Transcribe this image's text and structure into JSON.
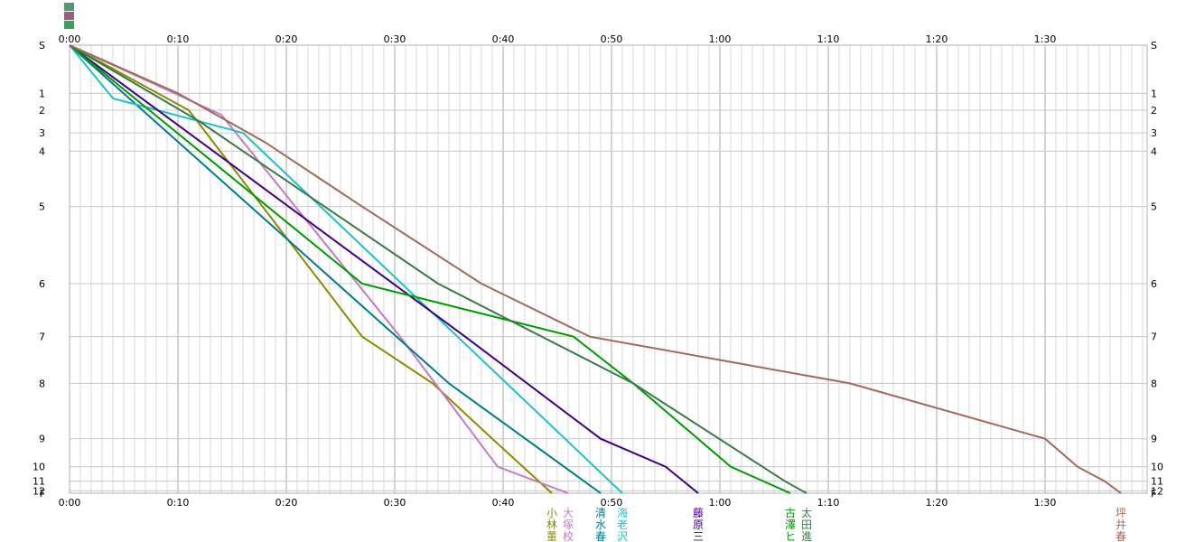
{
  "chart_data": {
    "type": "line",
    "x_unit": "minutes",
    "x_ticks": [
      "0:00",
      "0:10",
      "0:20",
      "0:30",
      "0:40",
      "0:50",
      "1:00",
      "1:10",
      "1:20",
      "1:30"
    ],
    "x_tick_values": [
      0,
      10,
      20,
      30,
      40,
      50,
      60,
      70,
      80,
      90
    ],
    "xlim": [
      0,
      99
    ],
    "y_ticks": [
      "S",
      "1",
      "2",
      "3",
      "4",
      "5",
      "6",
      "7",
      "8",
      "9",
      "10",
      "11",
      "12",
      "F"
    ],
    "y_tick_values": [
      0,
      1,
      2,
      3,
      4,
      5,
      6,
      7,
      8,
      9,
      10,
      11,
      12,
      12.15
    ],
    "y_positions": [
      0,
      1,
      1.35,
      1.82,
      2.2,
      3.35,
      4.95,
      6.05,
      7.02,
      8.17,
      8.75,
      9.05,
      9.25,
      9.3
    ],
    "grid": true,
    "series": [
      {
        "name": "小林 董",
        "color": "#8b8b00",
        "label_lines": [
          "小",
          "林",
          "董"
        ],
        "x": [
          0,
          11,
          27,
          33.5,
          39,
          44.5
        ],
        "y": [
          0,
          2,
          7,
          8,
          9,
          12.15
        ]
      },
      {
        "name": "大塚 校",
        "color": "#c47ac4",
        "label_lines": [
          "大",
          "塚",
          "校"
        ],
        "x": [
          0,
          14,
          30.5,
          39.5,
          46
        ],
        "y": [
          0,
          2.2,
          7,
          10,
          12.15
        ]
      },
      {
        "name": "清水 春",
        "color": "#007b8b",
        "label_lines": [
          "清",
          "水",
          "春"
        ],
        "x": [
          0,
          35,
          49
        ],
        "y": [
          0,
          8,
          12.15
        ]
      },
      {
        "name": "海老 沢",
        "color": "#20c0c8",
        "label_lines": [
          "海",
          "老",
          "沢"
        ],
        "x": [
          0,
          4,
          16,
          51
        ],
        "y": [
          0,
          1.3,
          3,
          12.15
        ]
      },
      {
        "name": "藤原 三",
        "color": "#400080",
        "label_lines": [
          "藤",
          "原",
          "三"
        ],
        "x": [
          0,
          36.5,
          49,
          55,
          58
        ],
        "y": [
          0,
          7,
          9,
          10,
          12.15
        ]
      },
      {
        "name": "古澤 ヒ",
        "color": "#009900",
        "label_lines": [
          "古",
          "澤",
          "ヒ"
        ],
        "x": [
          0,
          27,
          46.5,
          52,
          61,
          66.5
        ],
        "y": [
          0,
          6,
          7,
          8,
          10,
          12.15
        ]
      },
      {
        "name": "太田 進",
        "color": "#3a7a4a",
        "label_lines": [
          "太",
          "田",
          "進"
        ],
        "x": [
          0,
          12,
          16,
          34,
          52,
          66,
          68
        ],
        "y": [
          0,
          2.5,
          4,
          6,
          8,
          11,
          12.15
        ]
      },
      {
        "name": "坪井 春",
        "color": "#a06a5a",
        "label_lines": [
          "坪",
          "井",
          "春"
        ],
        "x": [
          0,
          10,
          18,
          27,
          38,
          48,
          60,
          72,
          90,
          93,
          95.5,
          97
        ],
        "y": [
          0,
          1,
          3.5,
          5,
          6,
          7,
          7.5,
          8,
          9,
          10,
          11,
          12.15
        ]
      }
    ]
  }
}
